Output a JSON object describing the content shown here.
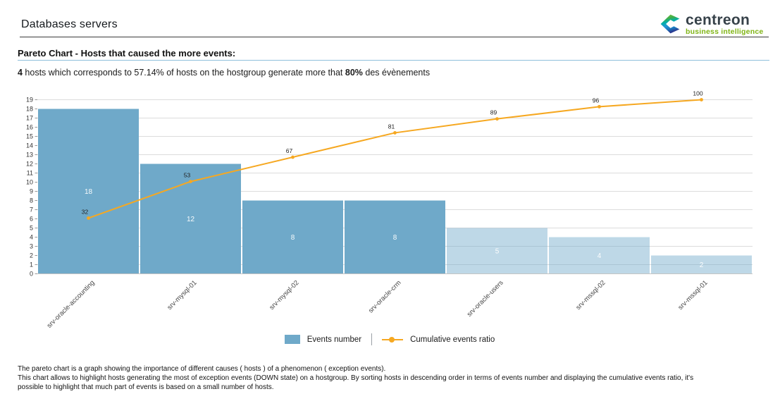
{
  "page": {
    "title": "Databases servers",
    "logo": {
      "name": "centreon",
      "tagline": "business intelligence",
      "brand_dark": "#37424a",
      "brand_green": "#7fb414"
    },
    "section_heading": "Pareto Chart - Hosts that caused the more events:",
    "summary": {
      "bold1": "4",
      "text1": " hosts which corresponds to 57.14% of hosts on the hostgroup generate more that ",
      "bold2": "80%",
      "text2": " des évènements"
    },
    "footer_lines": [
      "The pareto chart is a graph showing the importance of different causes ( hosts ) of a phenomenon ( exception events).",
      "This chart allows to highlight hosts generating the most of exception events (DOWN state) on a hostgroup. By sorting hosts in descending order in terms of events number and displaying the cumulative events ratio, it's",
      "possible to highlight that much part of events is based on a small number of hosts."
    ]
  },
  "legend": {
    "events_label": "Events number",
    "ratio_label": "Cumulative events ratio"
  },
  "chart_data": {
    "type": "bar",
    "subtype": "pareto",
    "categories": [
      "srv-oracle-accounting",
      "srv-mysql-01",
      "srv-mysql-02",
      "srv-oracle-crm",
      "srv-oracle-users",
      "srv-mssql-02",
      "srv-mssql-01"
    ],
    "series": [
      {
        "name": "Events number",
        "type": "bar",
        "values": [
          18,
          12,
          8,
          8,
          5,
          4,
          2
        ]
      },
      {
        "name": "Cumulative events ratio",
        "type": "line",
        "unit": "percent",
        "values": [
          32,
          53,
          67,
          81,
          89,
          96,
          100
        ]
      }
    ],
    "title": "",
    "xlabel": "",
    "ylabel": "",
    "ylim": [
      0,
      19
    ],
    "ratio_ylim": [
      0,
      100
    ],
    "y_tick_step": 1,
    "gridline_step": 2,
    "grid": true,
    "legend_position": "bottom",
    "highlight_count": 4,
    "colors": {
      "bar_highlight": "#6FA9C9",
      "bar_rest": "#B7D5E5",
      "line": "#F6A821",
      "grid": "#DCDCDC",
      "axis": "#C4C4C4",
      "tick": "#999999",
      "bar_label": "#FFFFFF",
      "point_label": "#222222",
      "category_label": "#444444"
    }
  }
}
